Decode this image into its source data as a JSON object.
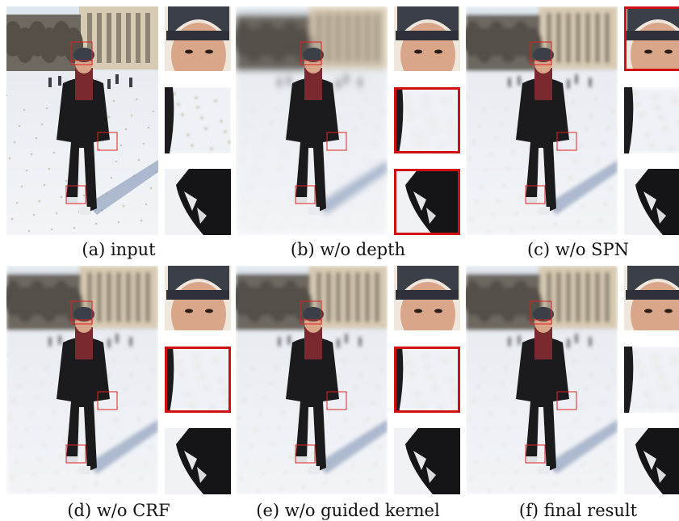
{
  "figure": {
    "panels": [
      {
        "caption": "(a) input",
        "blur": 0,
        "highlight": []
      },
      {
        "caption": "(b) w/o depth",
        "blur": 4,
        "highlight": [
          1,
          2
        ]
      },
      {
        "caption": "(c) w/o SPN",
        "blur": 2,
        "highlight": [
          0
        ]
      },
      {
        "caption": "(d) w/o CRF",
        "blur": 2.5,
        "highlight": [
          1
        ]
      },
      {
        "caption": "(e) w/o guided kernel",
        "blur": 2.5,
        "highlight": [
          1
        ]
      },
      {
        "caption": "(f) final result",
        "blur": 2.5,
        "highlight": []
      }
    ],
    "colors": {
      "box": "#e02020",
      "highlight": "#d01010",
      "snow": "#f2f4f7",
      "sky": "#dfe7ee",
      "building": "#d8cbb3",
      "coat": "#1b1b1d",
      "scarf": "#7a2a2e",
      "hat": "#3b3f48",
      "skin": "#d9a68a"
    }
  }
}
